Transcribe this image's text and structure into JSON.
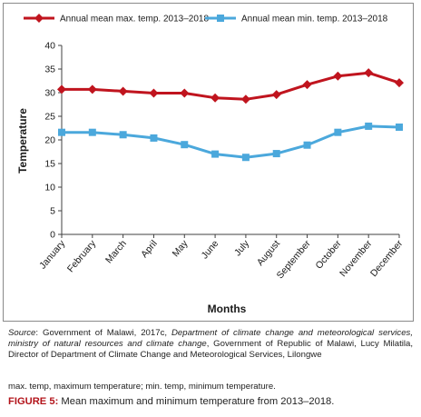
{
  "chart_data": {
    "type": "line",
    "title": "",
    "xlabel": "Months",
    "ylabel": "Temperature",
    "ylim": [
      0,
      40
    ],
    "yticks": [
      0,
      5,
      10,
      15,
      20,
      25,
      30,
      35,
      40
    ],
    "grid": false,
    "legend_position": "top",
    "categories": [
      "January",
      "February",
      "March",
      "April",
      "May",
      "June",
      "July",
      "August",
      "September",
      "October",
      "November",
      "December"
    ],
    "series": [
      {
        "name": "Annual mean max. temp. 2013–2018",
        "color": "#c0141e",
        "marker": "diamond",
        "values": [
          30.7,
          30.7,
          30.3,
          29.9,
          29.9,
          28.9,
          28.6,
          29.6,
          31.7,
          33.5,
          34.2,
          32.1
        ]
      },
      {
        "name": "Annual mean min. temp. 2013–2018",
        "color": "#4ba8dc",
        "marker": "square",
        "values": [
          21.6,
          21.6,
          21.1,
          20.4,
          19.0,
          17.0,
          16.3,
          17.1,
          18.9,
          21.6,
          22.9,
          22.7
        ]
      }
    ]
  },
  "caption": {
    "source_label": "Source",
    "source_plain_1": ": Government of Malawi, 2017c, ",
    "source_italic": "Department of climate change and meteorological services, ministry of natural resources and climate change",
    "source_plain_2": ", Government of Republic of Malawi, Lucy Milatila, Director of Department of Climate Change and Meteorological Services, Lilongwe",
    "abbreviations": "max. temp, maximum temperature; min. temp, minimum temperature.",
    "figure_label": "FIGURE 5:",
    "figure_text": " Mean maximum and minimum temperature from 2013–2018."
  }
}
